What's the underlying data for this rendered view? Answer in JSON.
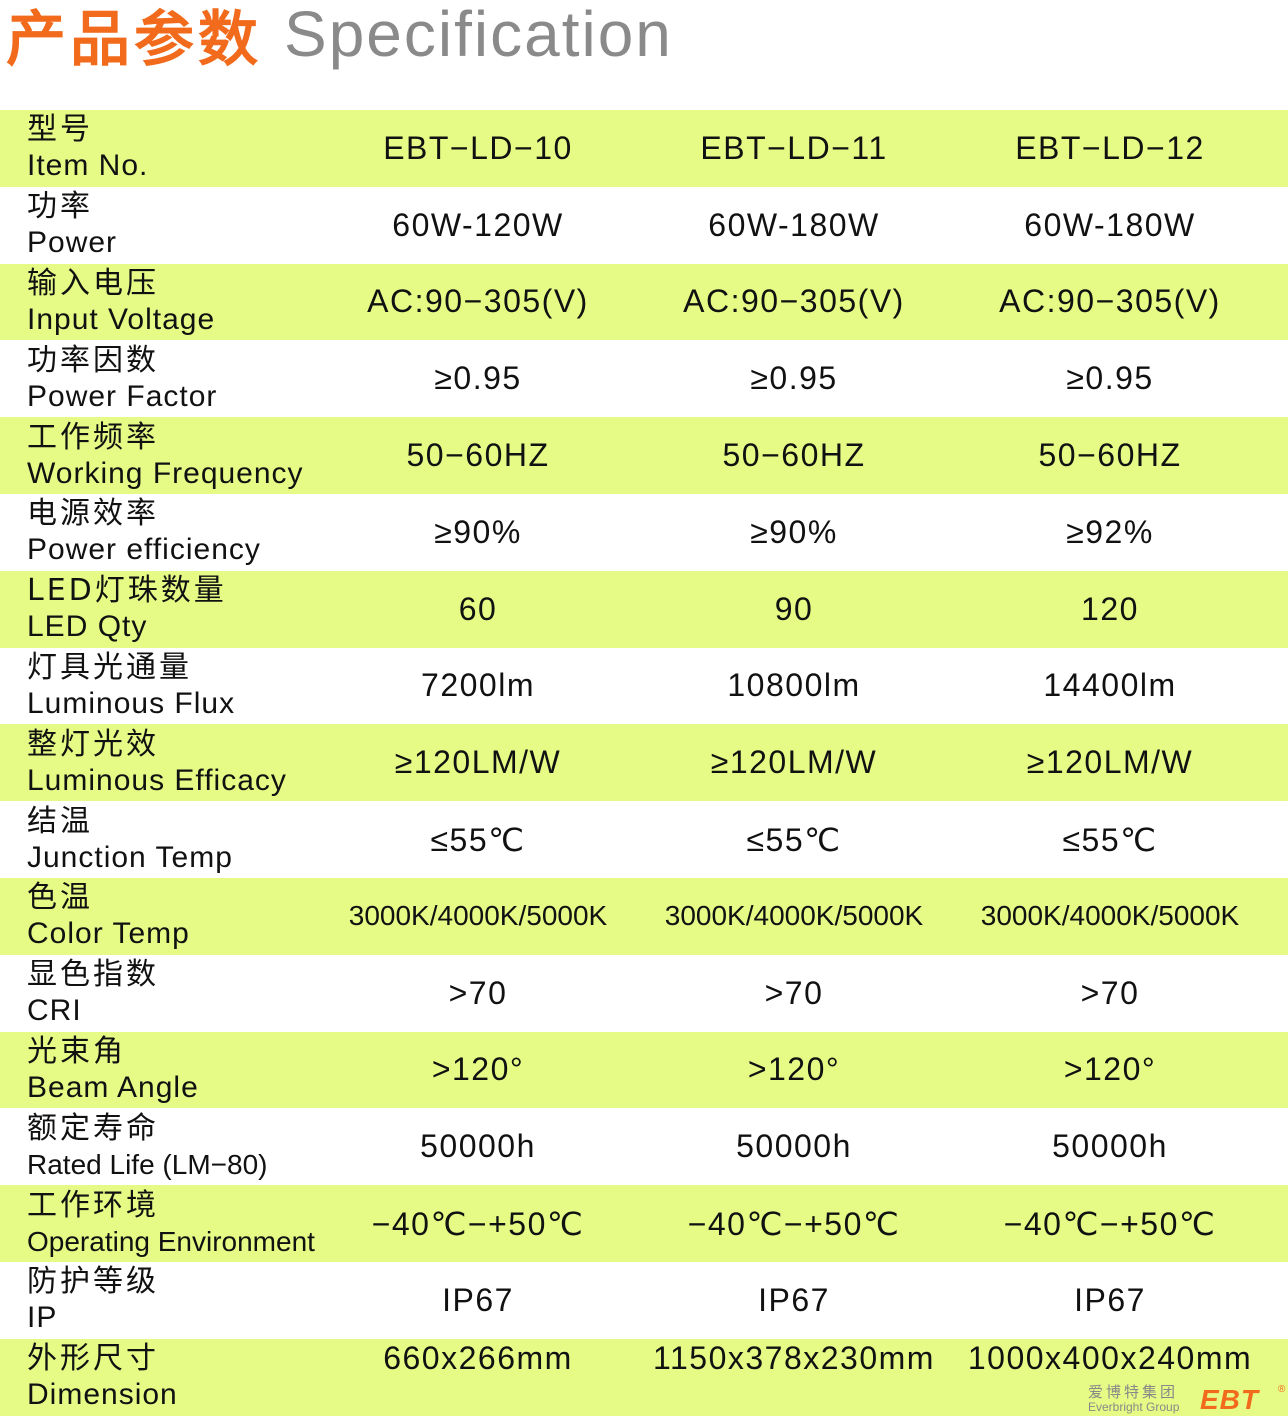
{
  "title": {
    "cn": "产品参数",
    "en": "Specification"
  },
  "rows": [
    {
      "cn": "型号",
      "en": "Item No.",
      "values": [
        "EBT−LD−10",
        "EBT−LD−11",
        "EBT−LD−12"
      ]
    },
    {
      "cn": "功率",
      "en": "Power",
      "values": [
        "60W-120W",
        "60W-180W",
        "60W-180W"
      ]
    },
    {
      "cn": "输入电压",
      "en": "Input Voltage",
      "values": [
        "AC:90−305(V)",
        "AC:90−305(V)",
        "AC:90−305(V)"
      ]
    },
    {
      "cn": "功率因数",
      "en": "Power Factor",
      "values": [
        "≥0.95",
        "≥0.95",
        "≥0.95"
      ]
    },
    {
      "cn": "工作频率",
      "en": "Working Frequency",
      "values": [
        "50−60HZ",
        "50−60HZ",
        "50−60HZ"
      ]
    },
    {
      "cn": "电源效率",
      "en": "Power efficiency",
      "values": [
        "≥90%",
        "≥90%",
        "≥92%"
      ]
    },
    {
      "cn": "LED灯珠数量",
      "en": "LED Qty",
      "values": [
        "60",
        "90",
        "120"
      ]
    },
    {
      "cn": "灯具光通量",
      "en": "Luminous Flux",
      "values": [
        "7200lm",
        "10800lm",
        "14400lm"
      ]
    },
    {
      "cn": "整灯光效",
      "en": "Luminous Efficacy",
      "values": [
        "≥120LM/W",
        "≥120LM/W",
        "≥120LM/W"
      ]
    },
    {
      "cn": "结温",
      "en": "Junction Temp",
      "values": [
        "≤55℃",
        "≤55℃",
        "≤55℃"
      ]
    },
    {
      "cn": "色温",
      "en": "Color Temp",
      "values": [
        "3000K/4000K/5000K",
        "3000K/4000K/5000K",
        "3000K/4000K/5000K"
      ]
    },
    {
      "cn": "显色指数",
      "en": "CRI",
      "values": [
        ">70",
        ">70",
        ">70"
      ]
    },
    {
      "cn": "光束角",
      "en": "Beam Angle",
      "values": [
        ">120°",
        ">120°",
        ">120°"
      ]
    },
    {
      "cn": "额定寿命",
      "en": "Rated Life (LM−80)",
      "values": [
        "50000h",
        "50000h",
        "50000h"
      ]
    },
    {
      "cn": "工作环境",
      "en": "Operating Environment",
      "values": [
        "−40℃−+50℃",
        "−40℃−+50℃",
        "−40℃−+50℃"
      ]
    },
    {
      "cn": "防护等级",
      "en": "IP",
      "values": [
        "IP67",
        "IP67",
        "IP67"
      ]
    },
    {
      "cn": "外形尺寸",
      "en": "Dimension",
      "values": [
        "660x266mm",
        "1150x378x230mm",
        "1000x400x240mm"
      ]
    }
  ],
  "logo": {
    "cn": "爱博特集团",
    "en": "Everbright Group",
    "mark": "EBT",
    "registered": "®"
  },
  "colors": {
    "accent": "#f26a1b",
    "row_highlight": "#e6fa86",
    "subtitle": "#8a8a8a"
  }
}
